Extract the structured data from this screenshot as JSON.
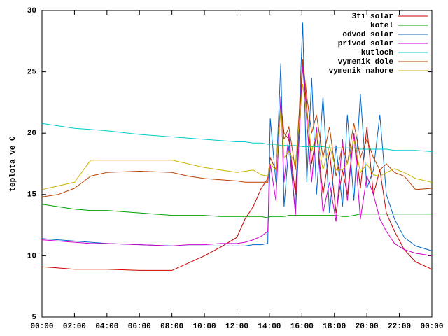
{
  "chart_data": {
    "type": "line",
    "y_label": "teplota ve C",
    "x": [
      0,
      1,
      2,
      3,
      4,
      6,
      8,
      9,
      10,
      11,
      12,
      12.5,
      13,
      13.5,
      13.9,
      14.05,
      14.4,
      14.7,
      14.9,
      15.2,
      15.6,
      16.05,
      16.3,
      16.6,
      16.9,
      17.3,
      17.7,
      18.1,
      18.5,
      18.8,
      19.2,
      19.6,
      20,
      20.4,
      20.8,
      21.2,
      21.7,
      22.3,
      23,
      24
    ],
    "xlim": [
      0,
      24
    ],
    "xticks": [
      {
        "value": 0,
        "label": "00:00"
      },
      {
        "value": 2,
        "label": "02:00"
      },
      {
        "value": 4,
        "label": "04:00"
      },
      {
        "value": 6,
        "label": "06:00"
      },
      {
        "value": 8,
        "label": "08:00"
      },
      {
        "value": 10,
        "label": "10:00"
      },
      {
        "value": 12,
        "label": "12:00"
      },
      {
        "value": 14,
        "label": "14:00"
      },
      {
        "value": 16,
        "label": "16:00"
      },
      {
        "value": 18,
        "label": "18:00"
      },
      {
        "value": 20,
        "label": "20:00"
      },
      {
        "value": 22,
        "label": "22:00"
      },
      {
        "value": 24,
        "label": "00:00"
      }
    ],
    "ylim": [
      5,
      30
    ],
    "yticks": [
      5,
      10,
      15,
      20,
      25,
      30
    ],
    "legend": "top-right",
    "series": [
      {
        "name": "3ti solar",
        "color": "#cc0000",
        "values": [
          9.1,
          9.0,
          8.9,
          8.9,
          8.9,
          8.8,
          8.8,
          9.4,
          10.0,
          10.7,
          11.5,
          13.0,
          14.0,
          15.5,
          16.3,
          18.0,
          17.0,
          22.5,
          20.0,
          19.5,
          15.0,
          26.0,
          22.0,
          17.5,
          20.0,
          15.0,
          18.5,
          13.5,
          17.0,
          15.0,
          20.0,
          15.5,
          20.5,
          15.0,
          17.0,
          13.5,
          12.0,
          10.5,
          9.5,
          8.9
        ]
      },
      {
        "name": "kotel",
        "color": "#00a000",
        "values": [
          14.2,
          14.0,
          13.8,
          13.7,
          13.7,
          13.5,
          13.3,
          13.3,
          13.3,
          13.2,
          13.2,
          13.2,
          13.2,
          13.2,
          13.1,
          13.2,
          13.2,
          13.2,
          13.2,
          13.3,
          13.3,
          13.3,
          13.3,
          13.3,
          13.3,
          13.3,
          13.3,
          13.3,
          13.2,
          13.2,
          13.3,
          13.4,
          13.4,
          13.4,
          13.4,
          13.4,
          13.4,
          13.4,
          13.4,
          13.4
        ]
      },
      {
        "name": "odvod solar",
        "color": "#0066cc",
        "values": [
          11.4,
          11.3,
          11.2,
          11.1,
          11.0,
          10.9,
          10.8,
          10.8,
          10.8,
          10.8,
          10.8,
          10.8,
          10.9,
          10.9,
          11.0,
          21.2,
          16.0,
          25.7,
          14.0,
          19.0,
          13.5,
          29.0,
          16.0,
          24.5,
          15.0,
          23.0,
          13.5,
          19.0,
          14.0,
          21.5,
          14.5,
          23.2,
          15.5,
          17.0,
          21.5,
          15.0,
          13.0,
          11.5,
          10.8,
          10.4
        ]
      },
      {
        "name": "privod solar",
        "color": "#cc00cc",
        "values": [
          11.3,
          11.2,
          11.1,
          11.0,
          11.0,
          10.9,
          10.8,
          10.9,
          10.9,
          11.0,
          11.0,
          11.1,
          11.3,
          11.6,
          12.0,
          17.5,
          14.5,
          23.0,
          16.0,
          20.0,
          13.3,
          25.5,
          21.0,
          16.0,
          20.5,
          13.5,
          16.0,
          12.8,
          19.5,
          14.5,
          20.0,
          13.0,
          16.5,
          15.0,
          13.0,
          12.0,
          11.0,
          10.5,
          10.2,
          10.0
        ]
      },
      {
        "name": "kutloch",
        "color": "#00cccc",
        "values": [
          20.8,
          20.6,
          20.4,
          20.3,
          20.2,
          19.9,
          19.7,
          19.6,
          19.5,
          19.4,
          19.3,
          19.3,
          19.2,
          19.2,
          19.1,
          19.1,
          19.1,
          19.0,
          19.0,
          19.0,
          19.0,
          18.9,
          18.9,
          18.9,
          18.9,
          18.9,
          18.8,
          18.8,
          18.8,
          18.8,
          18.8,
          18.7,
          18.7,
          18.7,
          18.7,
          18.7,
          18.6,
          18.6,
          18.6,
          18.5
        ]
      },
      {
        "name": "vymenik dole",
        "color": "#b84000",
        "values": [
          14.8,
          15.0,
          15.5,
          16.5,
          16.8,
          16.9,
          16.8,
          16.5,
          16.3,
          16.2,
          16.1,
          16.0,
          16.0,
          16.0,
          16.0,
          18.0,
          17.0,
          22.0,
          19.5,
          20.5,
          17.0,
          26.0,
          23.0,
          20.0,
          21.5,
          18.0,
          20.5,
          16.5,
          19.0,
          17.5,
          20.8,
          18.0,
          19.5,
          18.0,
          17.0,
          17.5,
          16.8,
          16.5,
          15.4,
          15.5
        ]
      },
      {
        "name": "vymenik nahore",
        "color": "#c8b400",
        "values": [
          15.4,
          15.7,
          16.0,
          17.8,
          17.8,
          17.8,
          17.8,
          17.5,
          17.2,
          17.0,
          16.8,
          16.9,
          17.0,
          16.6,
          16.5,
          17.5,
          17.0,
          22.0,
          18.0,
          18.5,
          17.5,
          24.0,
          21.5,
          18.5,
          20.0,
          17.0,
          19.0,
          17.0,
          17.0,
          17.5,
          19.5,
          16.8,
          17.5,
          16.6,
          16.5,
          16.8,
          17.1,
          16.8,
          16.3,
          16.0
        ]
      }
    ]
  }
}
